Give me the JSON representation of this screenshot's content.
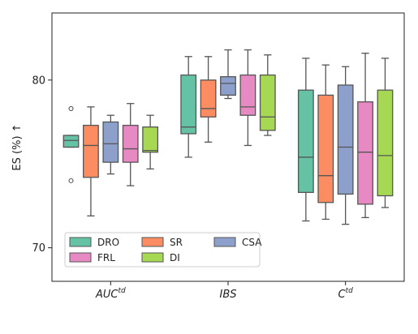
{
  "chart_data": {
    "type": "box",
    "ylabel": "ES (%) ↑",
    "ylim": [
      68,
      84.0
    ],
    "yticks": [
      70,
      80
    ],
    "categories": [
      {
        "name": "AUC",
        "sup": "td"
      },
      {
        "name": "IBS",
        "sup": ""
      },
      {
        "name": "C",
        "sup": "td"
      }
    ],
    "grid": false,
    "legend": {
      "placement": "lower-left",
      "columns": 3
    },
    "series": [
      {
        "name": "DRO",
        "color": "#66c2a5",
        "boxes": [
          {
            "whislo": 76.0,
            "q1": 76.0,
            "med": 76.4,
            "q3": 76.7,
            "whishi": 76.7,
            "fliers": [
              78.3,
              74.0
            ]
          },
          {
            "whislo": 75.4,
            "q1": 76.8,
            "med": 77.2,
            "q3": 80.3,
            "whishi": 81.4,
            "fliers": []
          },
          {
            "whislo": 71.6,
            "q1": 73.3,
            "med": 75.4,
            "q3": 79.4,
            "whishi": 81.3,
            "fliers": []
          }
        ]
      },
      {
        "name": "SR",
        "color": "#fc8d62",
        "boxes": [
          {
            "whislo": 71.9,
            "q1": 74.2,
            "med": 76.1,
            "q3": 77.3,
            "whishi": 78.4,
            "fliers": []
          },
          {
            "whislo": 76.3,
            "q1": 77.8,
            "med": 78.3,
            "q3": 80.0,
            "whishi": 81.4,
            "fliers": []
          },
          {
            "whislo": 71.7,
            "q1": 72.7,
            "med": 74.3,
            "q3": 79.1,
            "whishi": 80.9,
            "fliers": []
          }
        ]
      },
      {
        "name": "CSA",
        "color": "#8da0cb",
        "boxes": [
          {
            "whislo": 74.4,
            "q1": 75.1,
            "med": 76.2,
            "q3": 77.5,
            "whishi": 77.9,
            "fliers": []
          },
          {
            "whislo": 78.9,
            "q1": 79.1,
            "med": 79.8,
            "q3": 80.2,
            "whishi": 81.8,
            "fliers": []
          },
          {
            "whislo": 71.4,
            "q1": 73.2,
            "med": 76.0,
            "q3": 79.7,
            "whishi": 80.8,
            "fliers": []
          }
        ]
      },
      {
        "name": "FRL",
        "color": "#e78ac3",
        "boxes": [
          {
            "whislo": 73.7,
            "q1": 75.1,
            "med": 75.9,
            "q3": 77.3,
            "whishi": 78.6,
            "fliers": []
          },
          {
            "whislo": 76.1,
            "q1": 77.9,
            "med": 78.4,
            "q3": 80.3,
            "whishi": 81.8,
            "fliers": []
          },
          {
            "whislo": 71.8,
            "q1": 72.6,
            "med": 75.7,
            "q3": 78.7,
            "whishi": 81.6,
            "fliers": []
          }
        ]
      },
      {
        "name": "DI",
        "color": "#a6d854",
        "boxes": [
          {
            "whislo": 74.7,
            "q1": 75.7,
            "med": 75.8,
            "q3": 77.2,
            "whishi": 77.9,
            "fliers": []
          },
          {
            "whislo": 76.7,
            "q1": 77.0,
            "med": 77.8,
            "q3": 80.3,
            "whishi": 81.5,
            "fliers": []
          },
          {
            "whislo": 72.4,
            "q1": 73.1,
            "med": 75.5,
            "q3": 79.4,
            "whishi": 81.3,
            "fliers": []
          }
        ]
      }
    ]
  }
}
